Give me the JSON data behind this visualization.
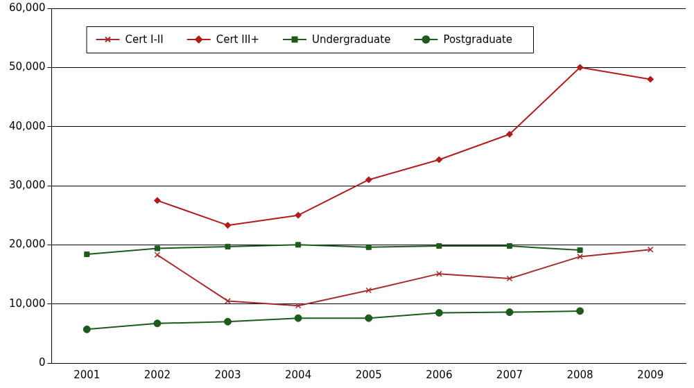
{
  "chart_data": {
    "type": "line",
    "categories": [
      "2001",
      "2002",
      "2003",
      "2004",
      "2005",
      "2006",
      "2007",
      "2008",
      "2009"
    ],
    "ylim": [
      0,
      60000
    ],
    "yticks": [
      0,
      {
        "value": 10000,
        "label": "10,000"
      },
      {
        "value": 20000,
        "label": "20,000"
      },
      {
        "value": 30000,
        "label": "30,000"
      },
      {
        "value": 40000,
        "label": "40,000"
      },
      {
        "value": 50000,
        "label": "50,000"
      },
      {
        "value": 60000,
        "label": "60,000"
      }
    ],
    "grid": "y",
    "legend": "top left",
    "series": [
      {
        "name": "Cert I-II",
        "color": "#a52a2a",
        "marker": "cross",
        "values": [
          null,
          18300,
          10500,
          9700,
          12300,
          15100,
          14300,
          18000,
          19200
        ]
      },
      {
        "name": "Cert III+",
        "color": "#b01c1c",
        "marker": "diamond",
        "values": [
          null,
          27500,
          23300,
          25000,
          31000,
          34400,
          38700,
          50000,
          48000
        ]
      },
      {
        "name": "Undergraduate",
        "color": "#1d5b1d",
        "marker": "square",
        "values": [
          18400,
          19400,
          19700,
          20000,
          19600,
          19800,
          19800,
          19100,
          null
        ]
      },
      {
        "name": "Postgraduate",
        "color": "#1d5b1d",
        "marker": "circle",
        "values": [
          5700,
          6700,
          7000,
          7600,
          7600,
          8500,
          8600,
          8800,
          null
        ]
      }
    ]
  }
}
